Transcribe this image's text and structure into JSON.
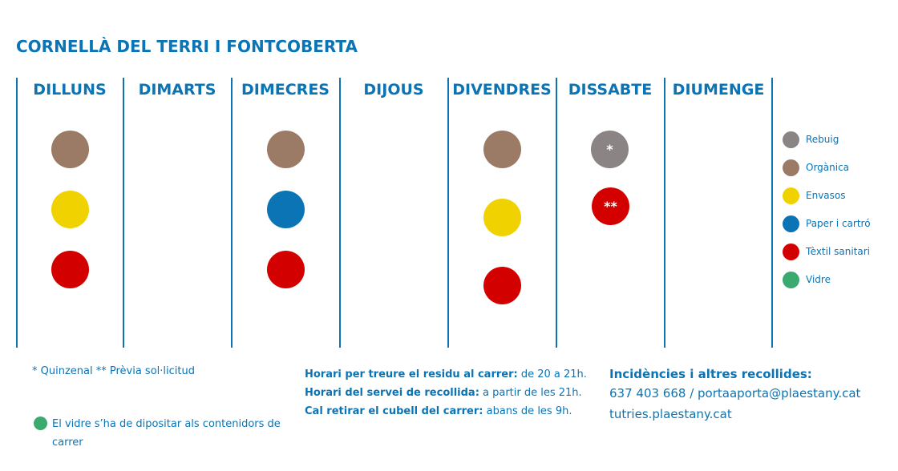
{
  "title": "CORNELLÀ DEL TERRI I FONTCOBERTA",
  "days": [
    "DILLUNS",
    "DIMARTS",
    "DIMECRES",
    "DIJOUS",
    "DIVENDRES",
    "DISSABTE",
    "DIUMENGE"
  ],
  "colors": {
    "rebuig": "#8a8584",
    "organica": "#9b7a66",
    "envasos": "#f0d200",
    "paper": "#0b74b4",
    "textil": "#d30000",
    "vidre": "#3aaa6e",
    "text": "#0b74b4"
  },
  "schedule": {
    "monday": [
      "organica",
      "envasos",
      "textil"
    ],
    "wednesday": [
      "organica",
      "paper",
      "textil"
    ],
    "friday": [
      "organica",
      "envasos",
      "textil"
    ],
    "saturday": [
      "rebuig",
      "textil"
    ]
  },
  "dot_marks": {
    "saturday_rebuig": "*",
    "saturday_textil": "**"
  },
  "legend": [
    {
      "key": "rebuig",
      "label": "Rebuig"
    },
    {
      "key": "organica",
      "label": "Orgànica"
    },
    {
      "key": "envasos",
      "label": "Envasos"
    },
    {
      "key": "paper",
      "label": "Paper i cartró"
    },
    {
      "key": "textil",
      "label": "Tèxtil sanitari"
    },
    {
      "key": "vidre",
      "label": "Vidre"
    }
  ],
  "footnote": "* Quinzenal ** Prèvia sol·licitud",
  "glass_note": "El vidre s’ha de dipositar als contenidors de carrer",
  "hours": [
    {
      "label": "Horari per treure el residu al carrer:",
      "value": " de 20 a 21h."
    },
    {
      "label": "Horari del servei de recollida:",
      "value": " a partir de les 21h."
    },
    {
      "label": "Cal retirar el cubell del carrer:",
      "value": " abans de les 9h."
    }
  ],
  "contact": {
    "heading": "Incidències i altres recollides:",
    "line1": "637 403 668 / portaaporta@plaestany.cat",
    "line2": "tutries.plaestany.cat"
  }
}
